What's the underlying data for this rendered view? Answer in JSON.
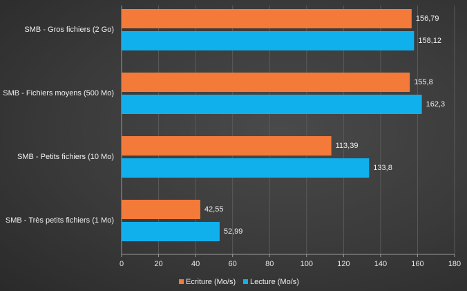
{
  "chart_data": {
    "type": "bar",
    "orientation": "horizontal",
    "title": "",
    "categories": [
      "SMB - Gros fichiers (2 Go)",
      "SMB - Fichiers moyens (500 Mo)",
      "SMB - Petits fichiers (10 Mo)",
      "SMB - Très petits fichiers (1 Mo)"
    ],
    "series": [
      {
        "name": "Ecriture (Mo/s)",
        "color": "#f47a3a",
        "values": [
          156.79,
          155.8,
          113.39,
          42.55
        ],
        "labels": [
          "156,79",
          "155,8",
          "113,39",
          "42,55"
        ]
      },
      {
        "name": "Lecture (Mo/s)",
        "color": "#10b0ec",
        "values": [
          158.12,
          162.3,
          133.8,
          52.99
        ],
        "labels": [
          "158,12",
          "162,3",
          "133,8",
          "52,99"
        ]
      }
    ],
    "xlim": [
      0,
      180
    ],
    "ticks": [
      0,
      20,
      40,
      60,
      80,
      100,
      120,
      140,
      160,
      180
    ],
    "grid": true,
    "legend": "bottom"
  }
}
